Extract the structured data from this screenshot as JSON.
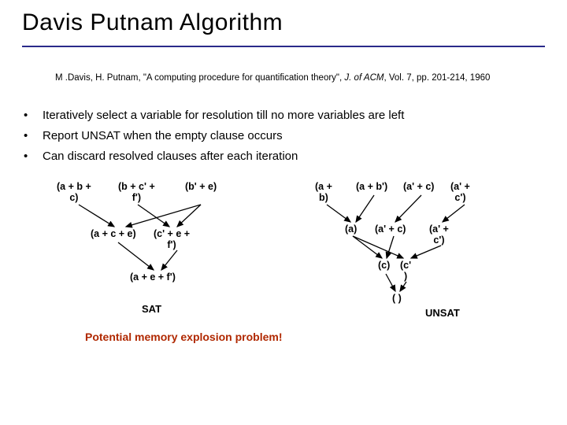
{
  "title": "Davis Putnam Algorithm",
  "citation": {
    "pre": "M .Davis, H. Putnam, \"A computing procedure for quantification theory\", ",
    "journal": "J. of ACM",
    "post": ", Vol. 7, pp. 201-214, 1960"
  },
  "bullets": [
    "Iteratively select a variable for resolution till no more variables are left",
    "Report UNSAT when the empty clause occurs",
    "Can discard resolved clauses after each iteration"
  ],
  "left": {
    "row1": [
      "(a + b +\nc)",
      "(b + c' +\nf')",
      "(b' + e)"
    ],
    "row2": [
      "(a + c + e)",
      "(c' + e +\nf')"
    ],
    "row3": "(a + e + f')",
    "result": "SAT"
  },
  "right": {
    "row1": [
      "(a +\nb)",
      "(a + b')",
      "(a' + c)",
      "(a' +\nc')"
    ],
    "row2": [
      "(a)",
      "(a' + c)",
      "(a' +\nc')"
    ],
    "row3a": "(c)",
    "row3b": "(c'\n)",
    "row4": "( )",
    "result": "UNSAT"
  },
  "warning": "Potential memory explosion problem!",
  "colors": {
    "rule": "#2a2a8a",
    "warn": "#b02800"
  }
}
